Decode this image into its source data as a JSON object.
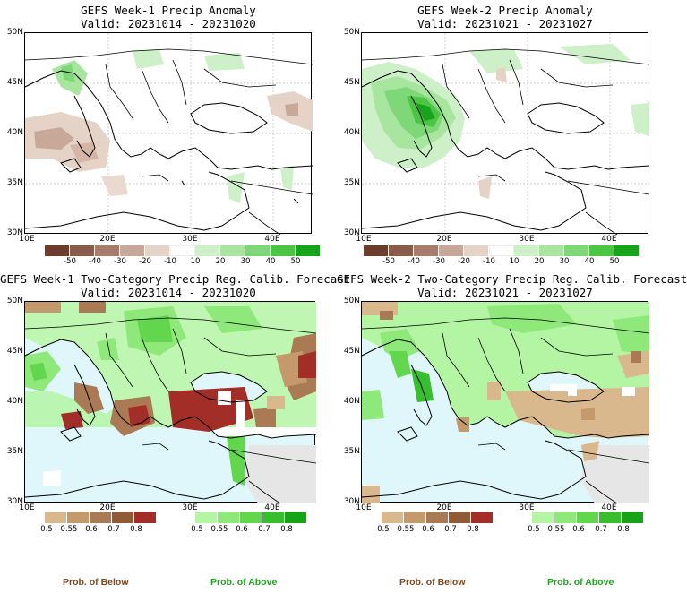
{
  "colors": {
    "sea": "#dff6fb",
    "land_grey": "#e6e6e6",
    "below": [
      "#d8b88c",
      "#c49a6c",
      "#a97a54",
      "#8f5a34",
      "#a32e28"
    ],
    "above": [
      "#b4f5a4",
      "#8ee87a",
      "#62d64c",
      "#36be2e",
      "#16a317"
    ],
    "anom_dry": [
      "#6e3c2c",
      "#8a5a4a",
      "#a87c6c",
      "#c8a898",
      "#e6d3c8"
    ],
    "anom_wet": [
      "#cdf0c8",
      "#a8e6a0",
      "#7fd877",
      "#4cc545",
      "#17a31a"
    ]
  },
  "panels": [
    {
      "id": "w1-anom",
      "title_line1": "GEFS Week-1 Precip Anomaly",
      "title_line2": "Valid: 20231014 - 20231020",
      "type": "anomaly",
      "y_ticks": [
        "50N",
        "45N",
        "40N",
        "35N",
        "30N"
      ],
      "x_ticks": [
        "10E",
        "20E",
        "30E",
        "40E"
      ],
      "colorbar_labels": [
        "-50",
        "-40",
        "-30",
        "-20",
        "-10",
        "10",
        "20",
        "30",
        "40",
        "50"
      ]
    },
    {
      "id": "w2-anom",
      "title_line1": "GEFS Week-2 Precip Anomaly",
      "title_line2": "Valid: 20231021 - 20231027",
      "type": "anomaly",
      "y_ticks": [
        "50N",
        "45N",
        "40N",
        "35N",
        "30N"
      ],
      "x_ticks": [
        "10E",
        "20E",
        "30E",
        "40E"
      ],
      "colorbar_labels": [
        "-50",
        "-40",
        "-30",
        "-20",
        "-10",
        "10",
        "20",
        "30",
        "40",
        "50"
      ]
    },
    {
      "id": "w1-prob",
      "title_line1": "GEFS Week-1 Two-Category Precip Reg. Calib. Forecast",
      "title_line2": "Valid: 20231014 - 20231020",
      "type": "probability",
      "y_ticks": [
        "50N",
        "45N",
        "40N",
        "35N",
        "30N"
      ],
      "x_ticks": [
        "10E",
        "20E",
        "30E",
        "40E"
      ],
      "colorbar_below": [
        "0.5",
        "0.55",
        "0.6",
        "0.7",
        "0.8"
      ],
      "colorbar_above": [
        "0.5",
        "0.55",
        "0.6",
        "0.7",
        "0.8"
      ],
      "legend_below": "Prob. of Below",
      "legend_above": "Prob. of Above"
    },
    {
      "id": "w2-prob",
      "title_line1": "GEFS Week-2 Two-Category Precip Reg. Calib. Forecast",
      "title_line2": "Valid: 20231021 - 20231027",
      "type": "probability",
      "y_ticks": [
        "50N",
        "45N",
        "40N",
        "35N",
        "30N"
      ],
      "x_ticks": [
        "10E",
        "20E",
        "30E",
        "40E"
      ],
      "colorbar_below": [
        "0.5",
        "0.55",
        "0.6",
        "0.7",
        "0.8"
      ],
      "colorbar_above": [
        "0.5",
        "0.55",
        "0.6",
        "0.7",
        "0.8"
      ],
      "legend_below": "Prob. of Below",
      "legend_above": "Prob. of Above"
    }
  ]
}
